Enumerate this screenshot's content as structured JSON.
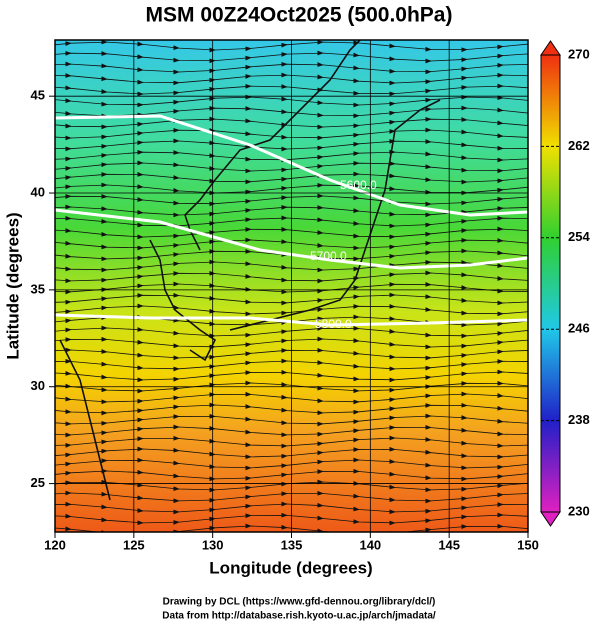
{
  "title": "MSM 00Z24Oct2025 (500.0hPa)",
  "x_axis": {
    "label": "Longitude (degrees)",
    "lim": [
      120,
      150
    ],
    "ticks": [
      120,
      125,
      130,
      135,
      140,
      145,
      150
    ]
  },
  "y_axis": {
    "label": "Latitude  (degrees)",
    "lim": [
      22.5,
      47.9
    ],
    "ticks": [
      25,
      30,
      35,
      40,
      45
    ]
  },
  "colorbar": {
    "lim": [
      230,
      270
    ],
    "ticks": [
      230,
      238,
      246,
      254,
      262,
      270
    ]
  },
  "contour_labels": [
    "5600.0",
    "5700.0",
    "5800.0"
  ],
  "footer": [
    "Drawing by DCL (https://www.gfd-dennou.org/library/dcl/)",
    "Data from http://database.rish.kyoto-u.ac.jp/arch/jmadata/"
  ]
}
